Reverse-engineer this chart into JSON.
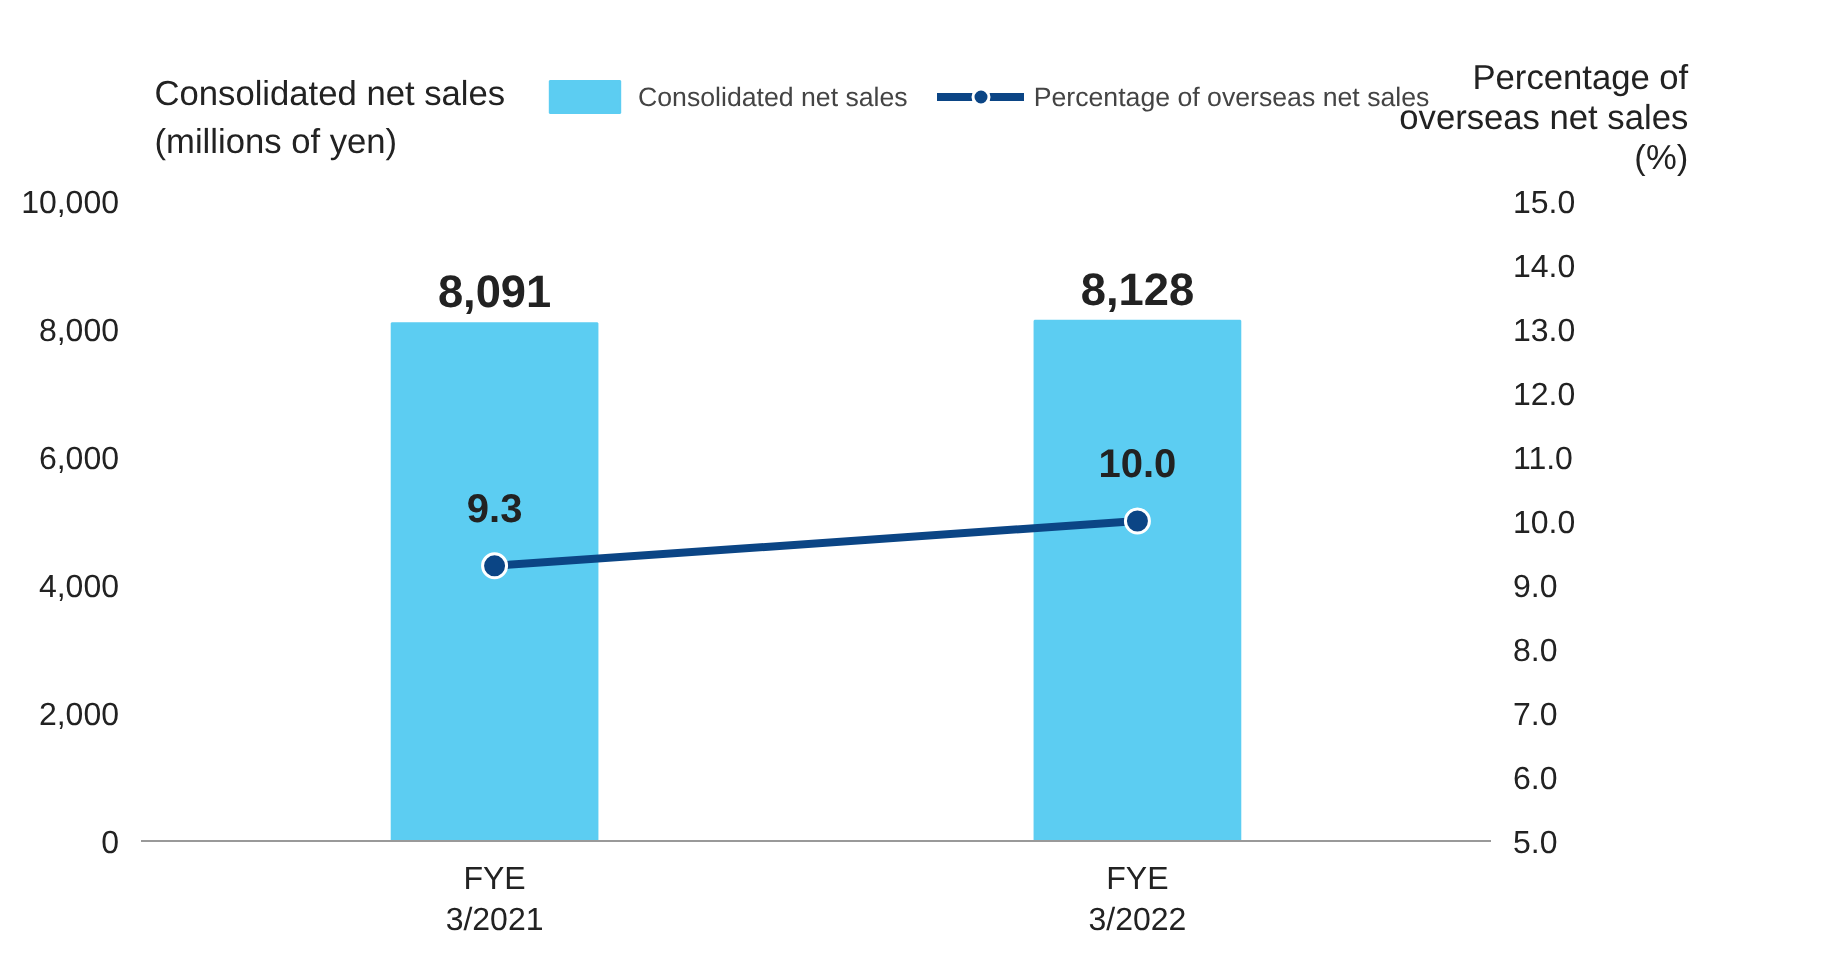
{
  "chart_data": {
    "type": "bar",
    "categories": [
      "FYE\n3/2021",
      "FYE\n3/2022"
    ],
    "series": [
      {
        "name": "Consolidated net sales",
        "color": "#5ccdf2",
        "values": [
          8091,
          8128
        ]
      },
      {
        "name": "Percentage of overseas net sales",
        "type": "line",
        "axis": "y2",
        "color": "#0b4585",
        "values": [
          9.3,
          10.0
        ]
      }
    ],
    "ylabel": "Consolidated net sales\n(millions of yen)",
    "y2label": "Percentage of\noverseas net sales\n(%)",
    "ylim": [
      0,
      10000
    ],
    "yticks": [
      {
        "value": 0,
        "label": "0"
      },
      {
        "value": 2000,
        "label": "2,000"
      },
      {
        "value": 4000,
        "label": "4,000"
      },
      {
        "value": 6000,
        "label": "6,000"
      },
      {
        "value": 8000,
        "label": "8,000"
      },
      {
        "value": 10000,
        "label": "10,000"
      }
    ],
    "y2lim": [
      5,
      15
    ],
    "y2ticks": [
      {
        "value": 5,
        "label": "5.0"
      },
      {
        "value": 6,
        "label": "6.0"
      },
      {
        "value": 7,
        "label": "7.0"
      },
      {
        "value": 8,
        "label": "8.0"
      },
      {
        "value": 9,
        "label": "9.0"
      },
      {
        "value": 10,
        "label": "10.0"
      },
      {
        "value": 11,
        "label": "11.0"
      },
      {
        "value": 12,
        "label": "12.0"
      },
      {
        "value": 13,
        "label": "13.0"
      },
      {
        "value": 14,
        "label": "14.0"
      },
      {
        "value": 15,
        "label": "15.0"
      }
    ],
    "value_labels": [
      [
        "8,091",
        "8,128"
      ],
      [
        "9.3",
        "10.0"
      ]
    ],
    "grid": false,
    "legend": "top",
    "marker": "circle",
    "line_style": "solid"
  }
}
